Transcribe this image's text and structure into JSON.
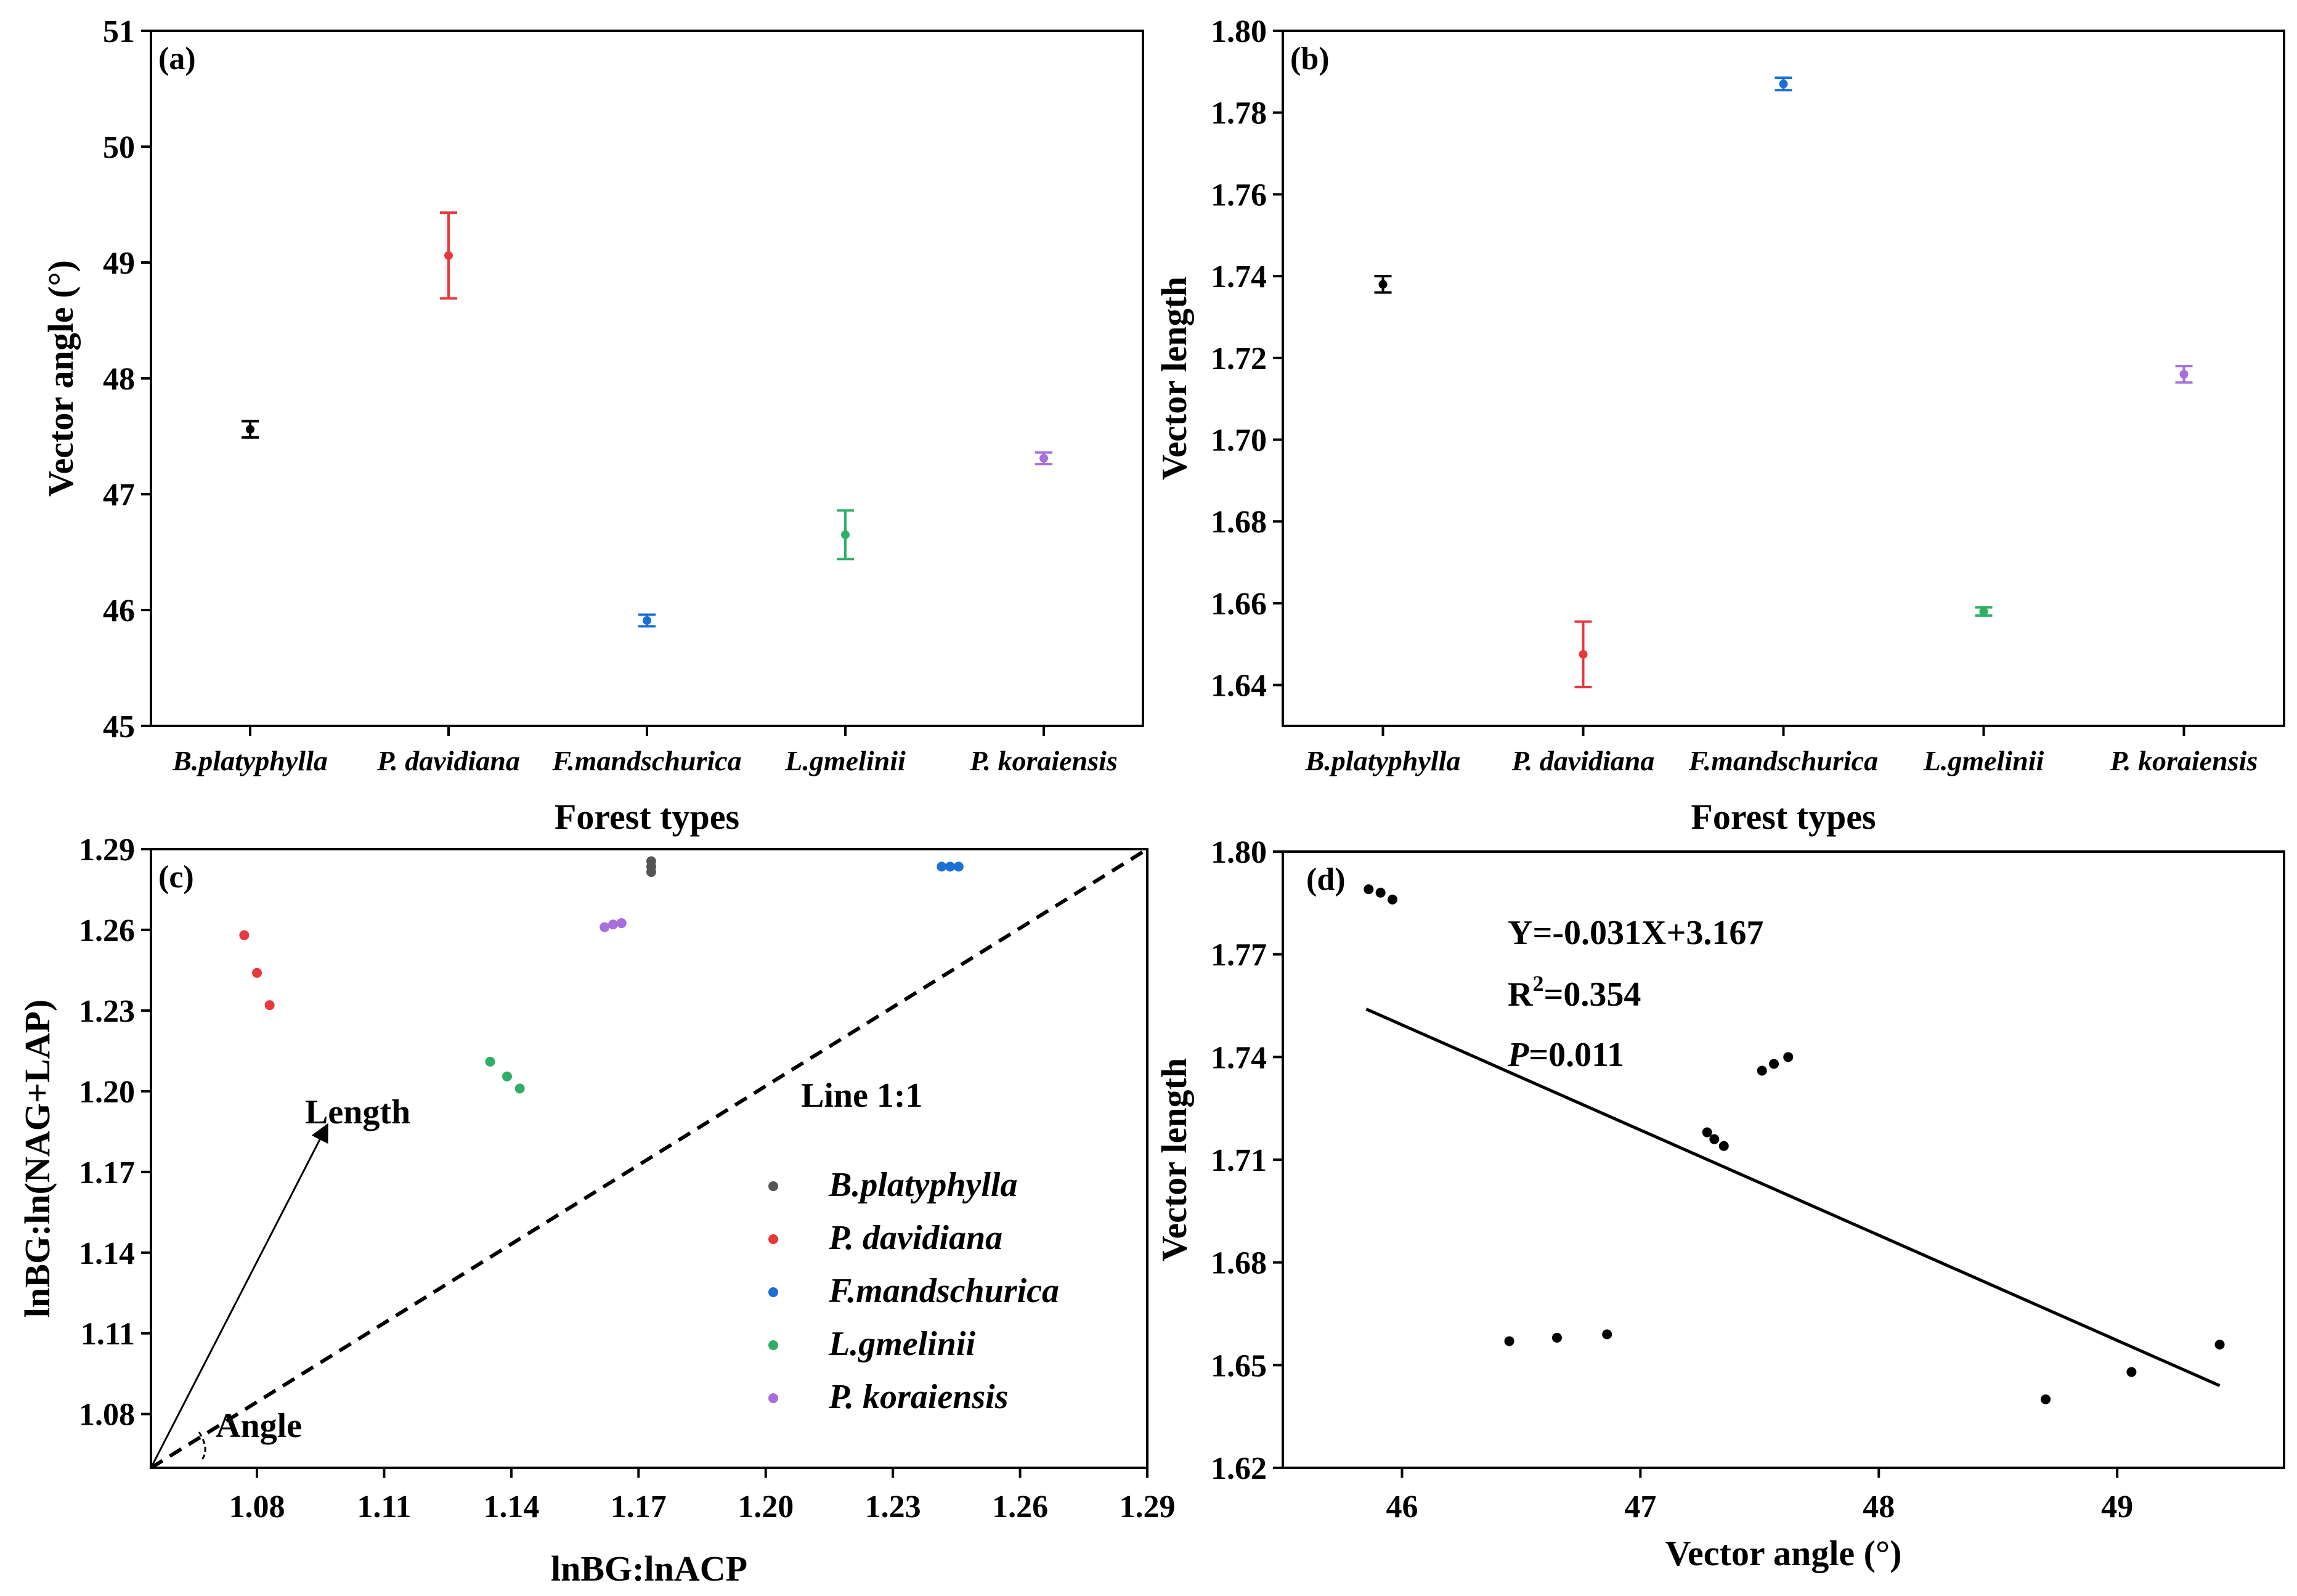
{
  "chart_data": [
    {
      "id": "a",
      "type": "scatter",
      "panel_label": "(a)",
      "xlabel": "Forest types",
      "ylabel": "Vector angle (°)",
      "ylim": [
        45,
        51
      ],
      "yticks": [
        "45",
        "46",
        "47",
        "48",
        "49",
        "50",
        "51"
      ],
      "categories": [
        "B.platyphylla",
        "P. davidiana",
        "F.mandschurica",
        "L.gmelinii",
        "P. koraiensis"
      ],
      "values": [
        47.56,
        49.06,
        45.91,
        46.65,
        47.31
      ],
      "errors": [
        0.07,
        0.37,
        0.05,
        0.21,
        0.05
      ],
      "colors": [
        "#000000",
        "#e8383d",
        "#1b6fd6",
        "#2fae67",
        "#a66fdc"
      ]
    },
    {
      "id": "b",
      "type": "scatter",
      "panel_label": "(b)",
      "xlabel": "Forest types",
      "ylabel": "Vector length",
      "ylim": [
        1.63,
        1.8
      ],
      "yticks": [
        "1.64",
        "1.66",
        "1.68",
        "1.70",
        "1.72",
        "1.74",
        "1.76",
        "1.78",
        "1.80"
      ],
      "categories": [
        "B.platyphylla",
        "P. davidiana",
        "F.mandschurica",
        "L.gmelinii",
        "P. koraiensis"
      ],
      "values": [
        1.738,
        1.6475,
        1.787,
        1.658,
        1.716
      ],
      "errors": [
        0.002,
        0.008,
        0.0015,
        0.001,
        0.002
      ],
      "colors": [
        "#000000",
        "#e8383d",
        "#1b6fd6",
        "#2fae67",
        "#a66fdc"
      ]
    },
    {
      "id": "c",
      "type": "scatter",
      "panel_label": "(c)",
      "xlabel": "lnBG:lnACP",
      "ylabel": "lnBG:ln(NAG+LAP)",
      "xlim": [
        1.055,
        1.29
      ],
      "ylim": [
        1.06,
        1.29
      ],
      "xticks": [
        "1.08",
        "1.11",
        "1.14",
        "1.17",
        "1.20",
        "1.23",
        "1.26",
        "1.29"
      ],
      "yticks": [
        "1.08",
        "1.11",
        "1.14",
        "1.17",
        "1.20",
        "1.23",
        "1.26",
        "1.29"
      ],
      "line_label": "Line 1:1",
      "length_label": "Length",
      "angle_label": "Angle",
      "series": [
        {
          "name": "B.platyphylla",
          "color": "#555555",
          "points": [
            [
              1.173,
              1.2855
            ],
            [
              1.173,
              1.2835
            ],
            [
              1.173,
              1.2815
            ]
          ]
        },
        {
          "name": "P. davidiana",
          "color": "#e8383d",
          "points": [
            [
              1.077,
              1.258
            ],
            [
              1.08,
              1.244
            ],
            [
              1.083,
              1.232
            ]
          ]
        },
        {
          "name": "F.mandschurica",
          "color": "#1b6fd6",
          "points": [
            [
              1.2415,
              1.2835
            ],
            [
              1.2435,
              1.2835
            ],
            [
              1.2455,
              1.2835
            ]
          ]
        },
        {
          "name": "L.gmelinii",
          "color": "#2fae67",
          "points": [
            [
              1.135,
              1.211
            ],
            [
              1.139,
              1.2055
            ],
            [
              1.142,
              1.201
            ]
          ]
        },
        {
          "name": "P. koraiensis",
          "color": "#a66fdc",
          "points": [
            [
              1.162,
              1.261
            ],
            [
              1.164,
              1.262
            ],
            [
              1.166,
              1.2625
            ]
          ]
        }
      ]
    },
    {
      "id": "d",
      "type": "scatter",
      "panel_label": "(d)",
      "xlabel": "Vector angle (°)",
      "ylabel": "Vector length",
      "xlim": [
        45.5,
        49.7
      ],
      "ylim": [
        1.62,
        1.8
      ],
      "xticks": [
        "46",
        "47",
        "48",
        "49"
      ],
      "yticks": [
        "1.62",
        "1.65",
        "1.68",
        "1.71",
        "1.74",
        "1.77",
        "1.80"
      ],
      "equation": "Y=-0.031X+3.167",
      "r2_prefix": "R",
      "r2_sup": "2",
      "r2_value": "=0.354",
      "p_letter": "P",
      "p_value": "=0.011",
      "fit_line": {
        "x": [
          45.85,
          49.43
        ],
        "y": [
          1.754,
          1.644
        ]
      },
      "points": [
        [
          45.86,
          1.789
        ],
        [
          45.91,
          1.788
        ],
        [
          45.96,
          1.786
        ],
        [
          46.45,
          1.657
        ],
        [
          46.65,
          1.658
        ],
        [
          46.86,
          1.659
        ],
        [
          47.28,
          1.718
        ],
        [
          47.31,
          1.716
        ],
        [
          47.35,
          1.714
        ],
        [
          47.51,
          1.736
        ],
        [
          47.56,
          1.738
        ],
        [
          47.62,
          1.74
        ],
        [
          48.7,
          1.64
        ],
        [
          49.06,
          1.648
        ],
        [
          49.43,
          1.656
        ]
      ]
    }
  ]
}
